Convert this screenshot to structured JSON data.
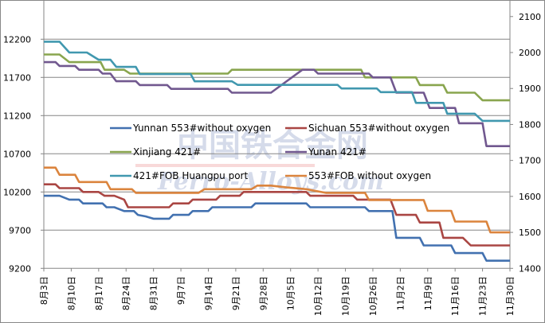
{
  "watermark": {
    "cn": "中国铁合金网",
    "en": "Ferro-Alloys.com"
  },
  "chart_data": {
    "type": "line",
    "title": "",
    "x_unit": "days since Aug 3",
    "xlim": [
      0,
      119
    ],
    "x_ticks": [
      {
        "day": 0,
        "label": "8月3日"
      },
      {
        "day": 7,
        "label": "8月10日"
      },
      {
        "day": 14,
        "label": "8月17日"
      },
      {
        "day": 21,
        "label": "8月24日"
      },
      {
        "day": 28,
        "label": "8月31日"
      },
      {
        "day": 35,
        "label": "9月7日"
      },
      {
        "day": 42,
        "label": "9月14日"
      },
      {
        "day": 49,
        "label": "9月21日"
      },
      {
        "day": 56,
        "label": "9月28日"
      },
      {
        "day": 63,
        "label": "10月5日"
      },
      {
        "day": 70,
        "label": "10月12日"
      },
      {
        "day": 77,
        "label": "10月19日"
      },
      {
        "day": 84,
        "label": "10月26日"
      },
      {
        "day": 91,
        "label": "11月2日"
      },
      {
        "day": 98,
        "label": "11月9日"
      },
      {
        "day": 105,
        "label": "11月16日"
      },
      {
        "day": 112,
        "label": "11月23日"
      },
      {
        "day": 119,
        "label": "11月30日"
      }
    ],
    "y_left": {
      "ylim": [
        9200,
        12200
      ],
      "ticks": [
        "9200",
        "9700",
        "10200",
        "10700",
        "11200",
        "11700",
        "12200"
      ]
    },
    "y_right": {
      "ylim": [
        1400,
        2100
      ],
      "ticks": [
        "1400",
        "1500",
        "1600",
        "1700",
        "1800",
        "1900",
        "2000",
        "2100"
      ]
    },
    "grid": true,
    "legend_placement": "center",
    "series": [
      {
        "name": "Yunnan 553#without oxygen",
        "axis": "left",
        "color": "#4271b0",
        "points": [
          [
            0,
            10150
          ],
          [
            4,
            10150
          ],
          [
            6.5,
            10100
          ],
          [
            9,
            10100
          ],
          [
            10,
            10050
          ],
          [
            15,
            10050
          ],
          [
            16,
            10000
          ],
          [
            18,
            10000
          ],
          [
            20.5,
            9950
          ],
          [
            23,
            9950
          ],
          [
            24,
            9900
          ],
          [
            26,
            9880
          ],
          [
            28,
            9850
          ],
          [
            32,
            9850
          ],
          [
            33,
            9900
          ],
          [
            37,
            9900
          ],
          [
            38,
            9950
          ],
          [
            42,
            9950
          ],
          [
            43,
            10000
          ],
          [
            53,
            10000
          ],
          [
            54,
            10050
          ],
          [
            67,
            10050
          ],
          [
            68,
            10000
          ],
          [
            82,
            10000
          ],
          [
            83,
            9950
          ],
          [
            89,
            9950
          ],
          [
            90,
            9600
          ],
          [
            96,
            9600
          ],
          [
            97,
            9500
          ],
          [
            104,
            9500
          ],
          [
            105,
            9400
          ],
          [
            112,
            9400
          ],
          [
            113,
            9300
          ],
          [
            119,
            9300
          ]
        ]
      },
      {
        "name": "Sichuan 553#without oxygen",
        "axis": "left",
        "color": "#aa4643",
        "points": [
          [
            0,
            10300
          ],
          [
            3,
            10300
          ],
          [
            4,
            10250
          ],
          [
            9,
            10250
          ],
          [
            10,
            10200
          ],
          [
            14,
            10200
          ],
          [
            15.5,
            10150
          ],
          [
            18,
            10150
          ],
          [
            20.5,
            10100
          ],
          [
            21.5,
            10000
          ],
          [
            32,
            10000
          ],
          [
            33,
            10050
          ],
          [
            37,
            10050
          ],
          [
            38,
            10100
          ],
          [
            44,
            10100
          ],
          [
            45,
            10150
          ],
          [
            50,
            10150
          ],
          [
            51,
            10200
          ],
          [
            67,
            10200
          ],
          [
            68,
            10150
          ],
          [
            79,
            10150
          ],
          [
            80,
            10100
          ],
          [
            88.5,
            10100
          ],
          [
            90,
            9900
          ],
          [
            95,
            9900
          ],
          [
            96,
            9800
          ],
          [
            101,
            9800
          ],
          [
            102,
            9600
          ],
          [
            107,
            9600
          ],
          [
            109,
            9500
          ],
          [
            119,
            9500
          ]
        ]
      },
      {
        "name": "Xinjiang 421#",
        "axis": "left",
        "color": "#89a54e",
        "points": [
          [
            0,
            12000
          ],
          [
            4,
            12000
          ],
          [
            6.5,
            11900
          ],
          [
            14.5,
            11900
          ],
          [
            15.5,
            11800
          ],
          [
            20.5,
            11800
          ],
          [
            22,
            11750
          ],
          [
            47,
            11750
          ],
          [
            48,
            11800
          ],
          [
            81,
            11800
          ],
          [
            82,
            11700
          ],
          [
            95,
            11700
          ],
          [
            96,
            11600
          ],
          [
            102,
            11600
          ],
          [
            103,
            11500
          ],
          [
            110,
            11500
          ],
          [
            112,
            11400
          ],
          [
            119,
            11400
          ]
        ]
      },
      {
        "name": "Yunan 421#",
        "axis": "left",
        "color": "#71588f",
        "points": [
          [
            0,
            11900
          ],
          [
            3,
            11900
          ],
          [
            4,
            11850
          ],
          [
            8,
            11850
          ],
          [
            9,
            11800
          ],
          [
            14,
            11800
          ],
          [
            15,
            11750
          ],
          [
            17,
            11750
          ],
          [
            18.5,
            11650
          ],
          [
            23.5,
            11650
          ],
          [
            24.5,
            11600
          ],
          [
            31.5,
            11600
          ],
          [
            32.5,
            11550
          ],
          [
            47,
            11550
          ],
          [
            48,
            11500
          ],
          [
            58,
            11500
          ],
          [
            66,
            11800
          ],
          [
            69,
            11800
          ],
          [
            70,
            11750
          ],
          [
            83,
            11750
          ],
          [
            84,
            11700
          ],
          [
            88.5,
            11700
          ],
          [
            90,
            11500
          ],
          [
            97,
            11500
          ],
          [
            98.5,
            11300
          ],
          [
            105,
            11300
          ],
          [
            106,
            11100
          ],
          [
            112,
            11100
          ],
          [
            113,
            10800
          ],
          [
            119,
            10800
          ]
        ]
      },
      {
        "name": "421#FOB Huangpu port",
        "axis": "right",
        "color": "#4198af",
        "points": [
          [
            0,
            2030
          ],
          [
            4,
            2030
          ],
          [
            6.5,
            2000
          ],
          [
            11,
            2000
          ],
          [
            14,
            1980
          ],
          [
            17,
            1980
          ],
          [
            18.5,
            1960
          ],
          [
            23.5,
            1960
          ],
          [
            24.5,
            1940
          ],
          [
            37.5,
            1940
          ],
          [
            38.5,
            1920
          ],
          [
            48,
            1920
          ],
          [
            49.5,
            1910
          ],
          [
            75,
            1910
          ],
          [
            76,
            1900
          ],
          [
            85,
            1900
          ],
          [
            86,
            1890
          ],
          [
            94,
            1890
          ],
          [
            95,
            1860
          ],
          [
            102,
            1860
          ],
          [
            103,
            1830
          ],
          [
            110,
            1830
          ],
          [
            112,
            1810
          ],
          [
            119,
            1810
          ]
        ]
      },
      {
        "name": "553#FOB without oxygen",
        "axis": "right",
        "color": "#db843d",
        "points": [
          [
            0,
            1680
          ],
          [
            3,
            1680
          ],
          [
            4,
            1660
          ],
          [
            8,
            1660
          ],
          [
            9,
            1640
          ],
          [
            16,
            1640
          ],
          [
            17,
            1620
          ],
          [
            22.5,
            1620
          ],
          [
            23.5,
            1610
          ],
          [
            39.5,
            1610
          ],
          [
            41,
            1620
          ],
          [
            53,
            1620
          ],
          [
            54.5,
            1630
          ],
          [
            58,
            1630
          ],
          [
            62,
            1625
          ],
          [
            67,
            1620
          ],
          [
            72,
            1610
          ],
          [
            82,
            1610
          ],
          [
            83,
            1590
          ],
          [
            97,
            1590
          ],
          [
            98,
            1560
          ],
          [
            104,
            1560
          ],
          [
            105,
            1530
          ],
          [
            113,
            1530
          ],
          [
            114,
            1500
          ],
          [
            119,
            1500
          ]
        ]
      }
    ]
  }
}
